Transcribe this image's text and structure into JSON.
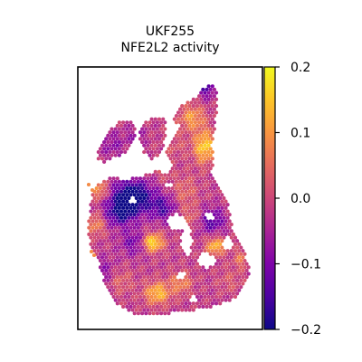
{
  "chart_data": {
    "type": "heatmap",
    "title": "UKF255",
    "subtitle": "NFE2L2 activity",
    "xlabel": "",
    "ylabel": "",
    "colormap": "plasma",
    "vmin": -0.2,
    "vmax": 0.2,
    "colorbar": {
      "ticks": [
        0.2,
        0.1,
        0.0,
        -0.1,
        -0.2
      ],
      "tick_labels": [
        "0.2",
        "0.1",
        "0.0",
        "−0.1",
        "−0.2"
      ]
    },
    "grid": false,
    "legend": "colorbar-right",
    "value_range_observed": [
      -0.2,
      0.21
    ]
  },
  "colors": {
    "low": "#0d0887",
    "mid": "#cc4778",
    "high": "#f0f921",
    "frame": "#000000"
  }
}
